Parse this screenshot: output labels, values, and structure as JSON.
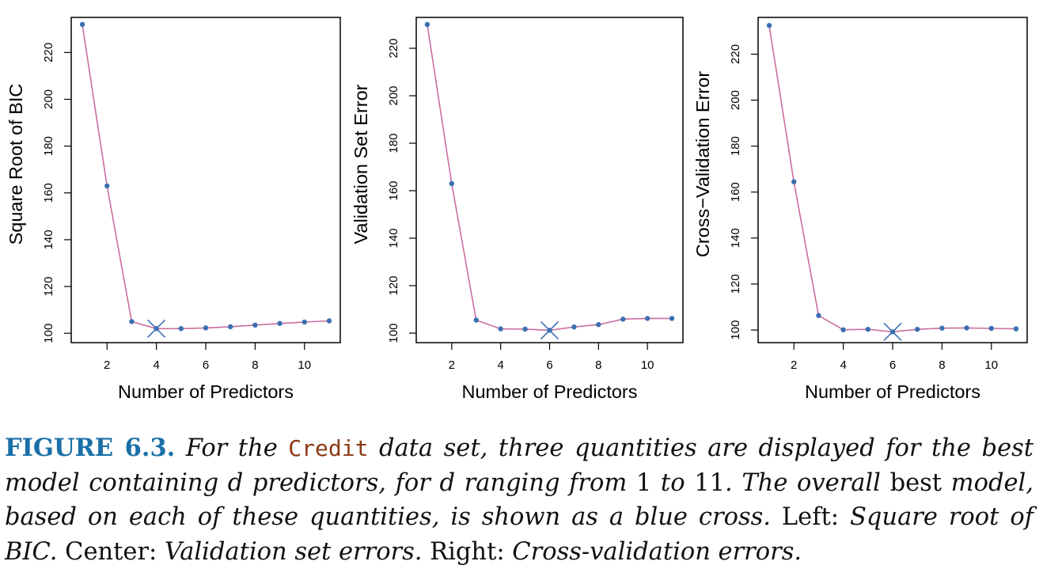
{
  "chart_data": [
    {
      "type": "line",
      "xlabel": "Number of Predictors",
      "ylabel": "Square Root of BIC",
      "x": [
        1,
        2,
        3,
        4,
        5,
        6,
        7,
        8,
        9,
        10,
        11
      ],
      "values": [
        232,
        163,
        105,
        102,
        102,
        102.3,
        102.8,
        103.5,
        104.2,
        104.8,
        105.3
      ],
      "best_index": 3,
      "xticks": [
        2,
        4,
        6,
        8,
        10
      ],
      "yticks": [
        100,
        120,
        140,
        160,
        180,
        200,
        220
      ],
      "xlim": [
        0.55,
        11.45
      ],
      "ylim": [
        96,
        235
      ],
      "line_color": "#c96f9e",
      "point_color": "#3a6fb3",
      "marker_color": "#3a6fb3"
    },
    {
      "type": "line",
      "xlabel": "Number of Predictors",
      "ylabel": "Validation Set Error",
      "x": [
        1,
        2,
        3,
        4,
        5,
        6,
        7,
        8,
        9,
        10,
        11
      ],
      "values": [
        230,
        163,
        105.5,
        101.8,
        101.7,
        101.2,
        102.6,
        103.6,
        105.9,
        106.2,
        106.2
      ],
      "best_index": 5,
      "xticks": [
        2,
        4,
        6,
        8,
        10
      ],
      "yticks": [
        100,
        120,
        140,
        160,
        180,
        200,
        220
      ],
      "xlim": [
        0.55,
        11.45
      ],
      "ylim": [
        96,
        233
      ],
      "line_color": "#c96f9e",
      "point_color": "#3a6fb3",
      "marker_color": "#3a6fb3"
    },
    {
      "type": "line",
      "xlabel": "Number of Predictors",
      "ylabel": "Cross−Validation Error",
      "x": [
        1,
        2,
        3,
        4,
        5,
        6,
        7,
        8,
        9,
        10,
        11
      ],
      "values": [
        232.5,
        164.5,
        106.3,
        100.1,
        100.3,
        99.2,
        100.3,
        100.8,
        100.9,
        100.7,
        100.5
      ],
      "best_index": 5,
      "xticks": [
        2,
        4,
        6,
        8,
        10
      ],
      "yticks": [
        100,
        120,
        140,
        160,
        180,
        200,
        220
      ],
      "xlim": [
        0.55,
        11.45
      ],
      "ylim": [
        94.5,
        236
      ],
      "line_color": "#c96f9e",
      "point_color": "#3a6fb3",
      "marker_color": "#3a6fb3"
    }
  ],
  "caption": {
    "label": "FIGURE 6.3.",
    "p1": " For the ",
    "code": "Credit",
    "p2": " data set, three quantities are displayed for the best model containing d predictors, for d ranging from ",
    "n1": "1",
    "p3": " to ",
    "n2": "11",
    "p4": ". The overall ",
    "best": "best",
    "p5": " model, based on each of these quantities, is shown as a blue cross.",
    "left_lbl": " Left:",
    "left_txt": " Square root of BIC.",
    "center_lbl": " Center:",
    "center_txt": " Validation set errors.",
    "right_lbl": " Right:",
    "right_txt": " Cross-validation errors."
  }
}
